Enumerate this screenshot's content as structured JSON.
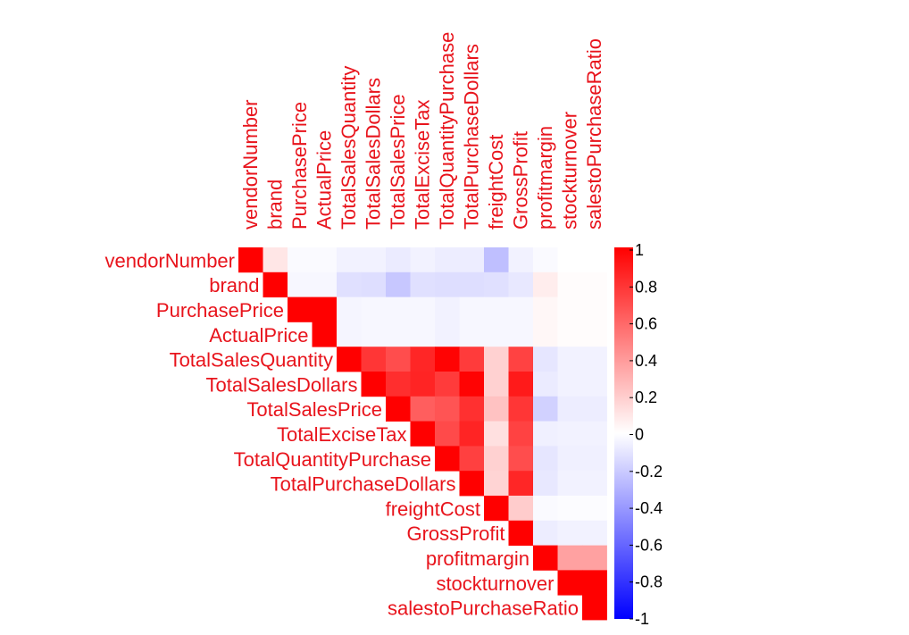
{
  "chart_data": {
    "type": "heatmap",
    "variables": [
      "vendorNumber",
      "brand",
      "PurchasePrice",
      "ActualPrice",
      "TotalSalesQuantity",
      "TotalSalesDollars",
      "TotalSalesPrice",
      "TotalExciseTax",
      "TotalQuantityPurchase",
      "TotalPurchaseDollars",
      "freightCost",
      "GrossProfit",
      "profitmargin",
      "stockturnover",
      "salestoPurchaseRatio"
    ],
    "upper_triangle": true,
    "matrix": [
      [
        1,
        0.1,
        -0.02,
        -0.02,
        -0.05,
        -0.05,
        -0.08,
        -0.05,
        -0.07,
        -0.07,
        -0.25,
        -0.05,
        -0.02,
        0.0,
        0.0
      ],
      [
        0.1,
        1,
        -0.03,
        -0.03,
        -0.12,
        -0.13,
        -0.22,
        -0.12,
        -0.13,
        -0.13,
        -0.12,
        -0.09,
        0.07,
        0.01,
        0.01
      ],
      [
        -0.02,
        -0.03,
        1,
        1,
        -0.04,
        -0.03,
        -0.03,
        -0.03,
        -0.05,
        -0.03,
        -0.03,
        -0.03,
        0.03,
        0.01,
        0.01
      ],
      [
        -0.02,
        -0.03,
        1,
        1,
        -0.04,
        -0.03,
        -0.03,
        -0.03,
        -0.05,
        -0.03,
        -0.03,
        -0.03,
        0.03,
        0.01,
        0.01
      ],
      [
        -0.05,
        -0.12,
        -0.04,
        -0.04,
        1,
        0.79,
        0.7,
        0.85,
        0.99,
        0.77,
        0.18,
        0.74,
        -0.1,
        -0.05,
        -0.05
      ],
      [
        -0.05,
        -0.13,
        -0.03,
        -0.03,
        0.79,
        1,
        0.82,
        0.86,
        0.77,
        0.99,
        0.18,
        0.9,
        -0.08,
        -0.05,
        -0.05
      ],
      [
        -0.08,
        -0.22,
        -0.03,
        -0.03,
        0.7,
        0.82,
        1,
        0.63,
        0.67,
        0.81,
        0.24,
        0.79,
        -0.18,
        -0.07,
        -0.07
      ],
      [
        -0.05,
        -0.12,
        -0.03,
        -0.03,
        0.85,
        0.86,
        0.63,
        1,
        0.71,
        0.86,
        0.12,
        0.74,
        -0.06,
        -0.05,
        -0.05
      ],
      [
        -0.07,
        -0.13,
        -0.05,
        -0.05,
        0.99,
        0.77,
        0.67,
        0.71,
        1,
        0.75,
        0.18,
        0.7,
        -0.1,
        -0.06,
        -0.06
      ],
      [
        -0.07,
        -0.13,
        -0.03,
        -0.03,
        0.77,
        0.99,
        0.81,
        0.86,
        0.75,
        1,
        0.17,
        0.85,
        -0.09,
        -0.05,
        -0.05
      ],
      [
        -0.25,
        -0.12,
        -0.03,
        -0.03,
        0.18,
        0.18,
        0.24,
        0.12,
        0.18,
        0.17,
        1,
        0.2,
        -0.02,
        -0.01,
        -0.01
      ],
      [
        -0.05,
        -0.09,
        -0.03,
        -0.03,
        0.74,
        0.9,
        0.79,
        0.74,
        0.7,
        0.85,
        0.2,
        1,
        -0.07,
        -0.05,
        -0.05
      ],
      [
        -0.02,
        0.07,
        0.03,
        0.03,
        -0.1,
        -0.08,
        -0.18,
        -0.06,
        -0.1,
        -0.09,
        -0.02,
        -0.07,
        1,
        0.37,
        0.37
      ],
      [
        0.0,
        0.01,
        0.01,
        0.01,
        -0.05,
        -0.05,
        -0.07,
        -0.05,
        -0.06,
        -0.05,
        -0.01,
        -0.05,
        0.37,
        1,
        1
      ],
      [
        0.0,
        0.01,
        0.01,
        0.01,
        -0.05,
        -0.05,
        -0.07,
        -0.05,
        -0.06,
        -0.05,
        -0.01,
        -0.05,
        0.37,
        1,
        1
      ]
    ],
    "colorbar": {
      "min": -1,
      "max": 1,
      "ticks": [
        "1",
        "0.8",
        "0.6",
        "0.4",
        "0.2",
        "0",
        "-0.2",
        "-0.4",
        "-0.6",
        "-0.8",
        "-1"
      ],
      "colors": {
        "low": "#0000ff",
        "mid": "#ffffff",
        "high": "#ff0000"
      }
    },
    "label_color": "#e8141c"
  }
}
